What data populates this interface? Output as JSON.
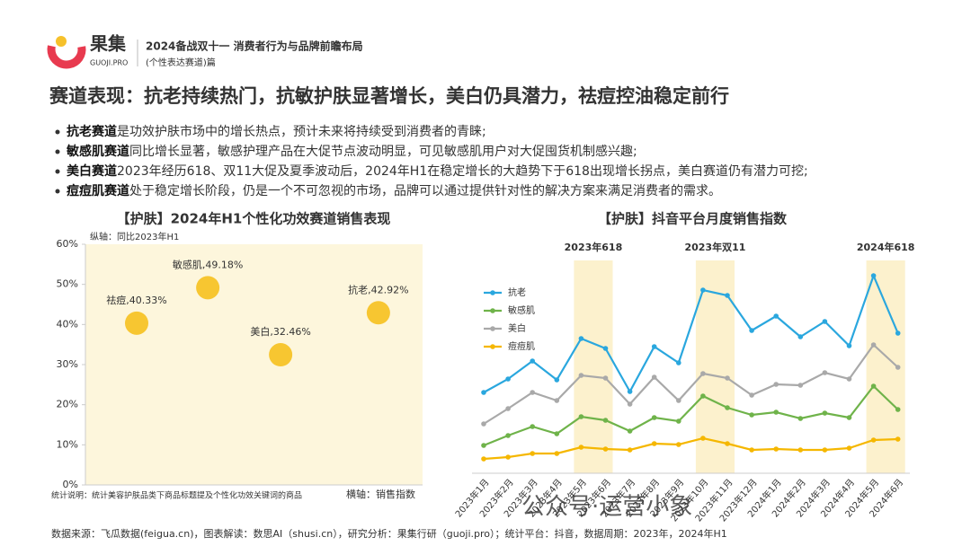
{
  "header": {
    "brand": "果集",
    "brand_sub": "GUOJI.PRO",
    "report_title": "2024备战双十一 消费者行为与品牌前瞻布局",
    "report_subtitle": "(个性表达赛道)篇"
  },
  "heading": "赛道表现：抗老持续热门，抗敏护肤显著增长，美白仍具潜力，祛痘控油稳定前行",
  "bullets": [
    {
      "bold": "抗老赛道",
      "text": "是功效护肤市场中的增长热点，预计未来将持续受到消费者的青睐;"
    },
    {
      "bold": "敏感肌赛道",
      "text": "同比增长显著，敏感护理产品在大促节点波动明显，可见敏感肌用户对大促囤货机制感兴趣;"
    },
    {
      "bold": "美白赛道",
      "text": "2023年经历618、双11大促及夏季波动后，2024年H1在稳定增长的大趋势下于618出现增长拐点，美白赛道仍有潜力可挖;"
    },
    {
      "bold": "痘痘肌赛道",
      "text": "处于稳定增长阶段，仍是一个不可忽视的市场，品牌可以通过提供针对性的解决方案来满足消费者的需求。"
    }
  ],
  "chart_data": [
    {
      "type": "scatter",
      "title": "【护肤】2024年H1个性化功效赛道销售表现",
      "y_label": "纵轴：同比2023年H1",
      "x_label": "横轴：销售指数",
      "note": "统计说明：统计美容护肤品类下商品标题提及个性化功效关键词的商品",
      "categories": [
        "祛痘",
        "敏感肌",
        "美白",
        "抗老"
      ],
      "x": [
        15.2,
        36.3,
        57.9,
        86.9
      ],
      "values": [
        40.33,
        49.18,
        32.46,
        42.92
      ],
      "value_labels": [
        "祛痘,40.33%",
        "敏感肌,49.18%",
        "美白,32.46%",
        "抗老,42.92%"
      ],
      "color": "#f7c631",
      "xlim": [
        0,
        100
      ],
      "ylim": [
        0,
        60
      ],
      "yticks": [
        {
          "value": 0,
          "label": "0%"
        },
        {
          "value": 10,
          "label": "10%"
        },
        {
          "value": 20,
          "label": "20%"
        },
        {
          "value": 30,
          "label": "30%"
        },
        {
          "value": 40,
          "label": "40%"
        },
        {
          "value": 50,
          "label": "50%"
        },
        {
          "value": 60,
          "label": "60%"
        }
      ]
    },
    {
      "type": "line",
      "title": "【护肤】抖音平台月度销售指数",
      "categories": [
        "2023年1月",
        "2023年2月",
        "2023年3月",
        "2023年4月",
        "2023年5月",
        "2023年6月",
        "2023年7月",
        "2023年8月",
        "2023年9月",
        "2023年10月",
        "2023年11月",
        "2023年12月",
        "2024年1月",
        "2024年2月",
        "2024年3月",
        "2024年4月",
        "2024年5月",
        "2024年6月"
      ],
      "ylim": [
        0,
        100
      ],
      "legend": "left",
      "highlights": [
        {
          "label": "2023年618",
          "from": "2023年5月",
          "to": "2023年6月"
        },
        {
          "label": "2023年双11",
          "from": "2023年10月",
          "to": "2023年11月"
        },
        {
          "label": "2024年618",
          "from": "2024年5月",
          "to": "2024年6月"
        }
      ],
      "series": [
        {
          "name": "抗老",
          "color": "#2aa7de",
          "values": [
            41.2,
            47.2,
            55.2,
            46.8,
            65.2,
            60.8,
            41.6,
            61.6,
            54.4,
            86.8,
            84.4,
            68.8,
            75.2,
            66,
            72.8,
            62,
            93.2,
            67.6
          ]
        },
        {
          "name": "敏感肌",
          "color": "#6fb34a",
          "values": [
            17.6,
            22,
            26,
            22.8,
            30.4,
            28.8,
            24,
            30,
            28.4,
            39.6,
            34.4,
            31.2,
            32.4,
            29.6,
            32,
            30,
            44,
            33.6
          ]
        },
        {
          "name": "美白",
          "color": "#a9a9a9",
          "values": [
            27.2,
            34,
            41.2,
            37.6,
            48.8,
            47.6,
            36,
            48,
            37.6,
            49.6,
            47.6,
            40,
            44.8,
            44.4,
            50,
            47.2,
            62.4,
            52.4
          ]
        },
        {
          "name": "痘痘肌",
          "color": "#f5b700",
          "values": [
            11.6,
            12.4,
            14,
            14,
            16.8,
            16,
            15.6,
            18.4,
            18,
            20.8,
            18.4,
            15.6,
            16,
            15.6,
            15.6,
            16.4,
            20,
            20.4
          ]
        }
      ]
    }
  ],
  "footer": "数据来源：飞瓜数据(feigua.cn)，图表解读：数思AI（shusi.cn），研究分析：果集行研（guoji.pro）；统计平台：抖音，数据周期：2023年，2024年H1",
  "watermark": "公众号·运营小象"
}
